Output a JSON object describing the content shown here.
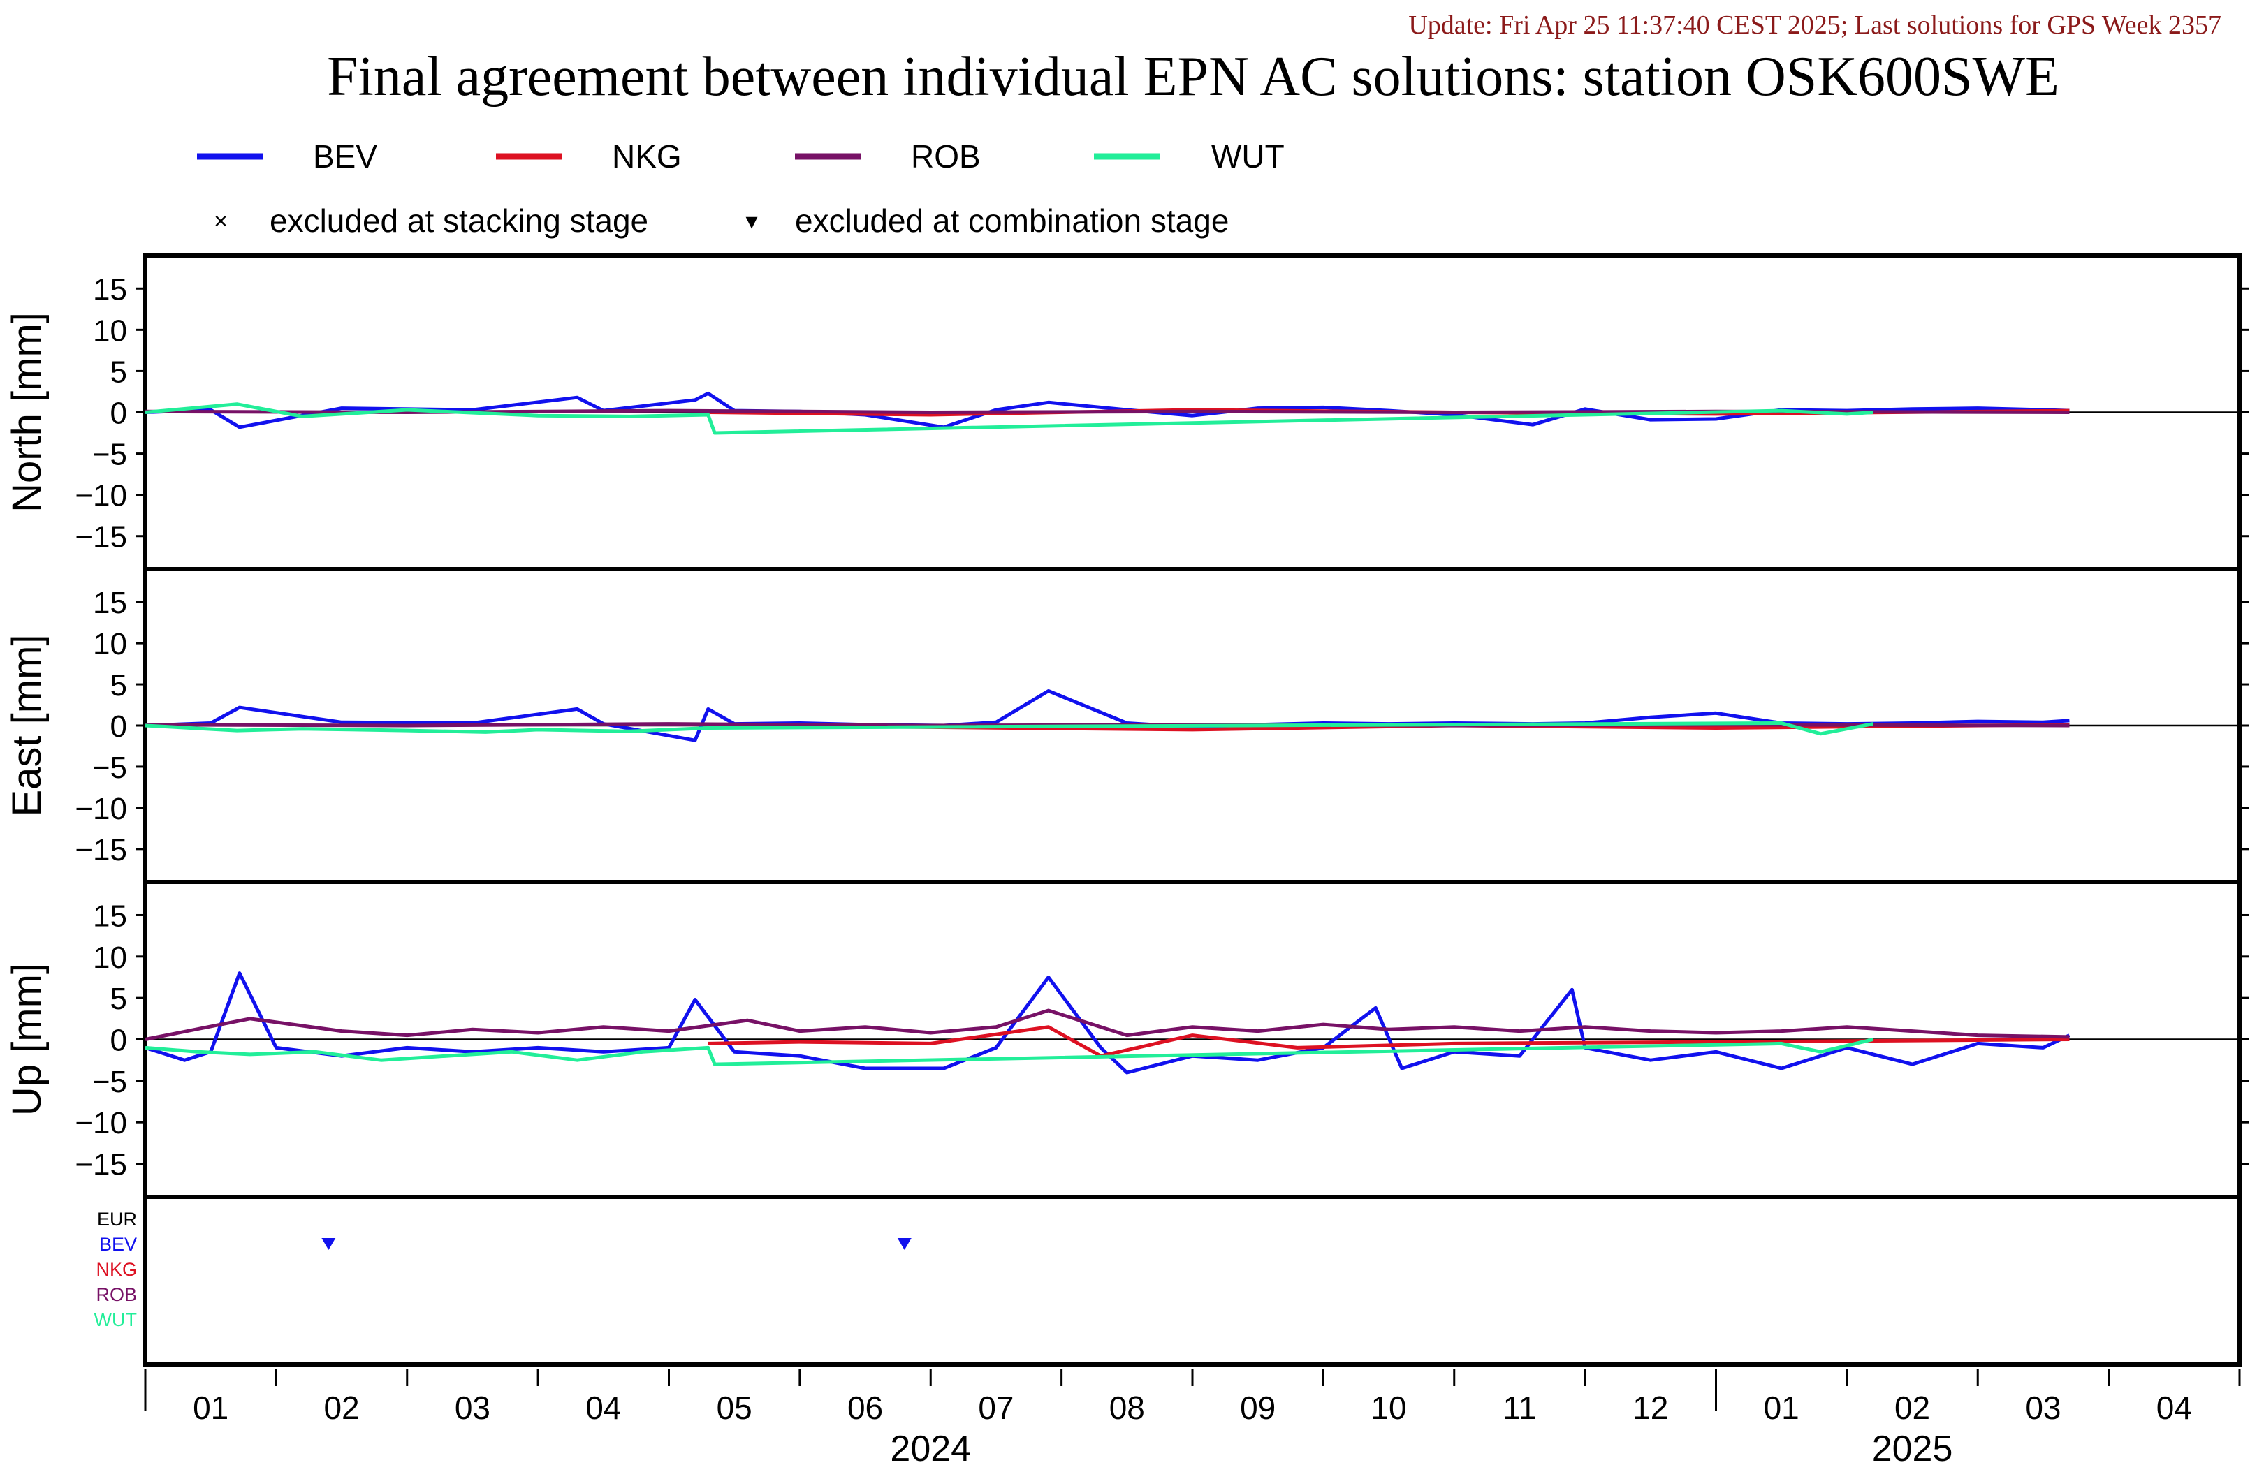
{
  "update_text": "Update: Fri Apr 25 11:37:40 CEST 2025; Last solutions for GPS Week 2357",
  "title": "Final agreement between individual EPN AC solutions: station OSK600SWE",
  "colors": {
    "BEV": "#1111ee",
    "NKG": "#dd1122",
    "ROB": "#771166",
    "WUT": "#22ee99",
    "EUR": "#000000",
    "update": "#8b1a1a"
  },
  "legend": {
    "series": [
      "BEV",
      "NKG",
      "ROB",
      "WUT"
    ],
    "excluded_stacking": "excluded at stacking stage",
    "excluded_combination": "excluded at combination stage",
    "marker_stacking": "×",
    "marker_combination": "▾"
  },
  "chart_data": [
    {
      "type": "line",
      "panel": "north",
      "ylabel": "North [mm]",
      "ylim": [
        -19,
        19
      ],
      "yticks": [
        15,
        10,
        5,
        0,
        -5,
        -10,
        -15
      ],
      "x_unit": "months since 2024-01-01",
      "xlim": [
        0,
        16
      ],
      "series": [
        {
          "name": "BEV",
          "x": [
            0,
            0.5,
            0.72,
            1.5,
            2.5,
            3.3,
            3.5,
            4.2,
            4.3,
            4.5,
            5.0,
            5.5,
            6.1,
            6.5,
            6.9,
            7.5,
            8.0,
            8.5,
            9.0,
            9.5,
            10.0,
            10.6,
            11.0,
            11.5,
            12.0,
            12.5,
            13.0,
            13.5,
            14.0,
            14.5,
            14.7
          ],
          "y": [
            0,
            0.3,
            -1.8,
            0.5,
            0.3,
            1.8,
            0.2,
            1.5,
            2.3,
            0.2,
            0.1,
            -0.3,
            -1.8,
            0.3,
            1.2,
            0.3,
            -0.4,
            0.5,
            0.6,
            0.2,
            -0.3,
            -1.5,
            0.4,
            -0.9,
            -0.8,
            0.3,
            0.2,
            0.4,
            0.5,
            0.3,
            0.2
          ]
        },
        {
          "name": "NKG",
          "x": [
            4.3,
            6.0,
            8.0,
            10.0,
            12.0,
            14.7
          ],
          "y": [
            0,
            -0.3,
            0.3,
            0,
            -0.2,
            0.2
          ]
        },
        {
          "name": "ROB",
          "x": [
            0,
            2.0,
            4.0,
            6.0,
            8.0,
            10.0,
            12.0,
            14.7
          ],
          "y": [
            0.1,
            0,
            0.2,
            0,
            0.1,
            0,
            0.1,
            0
          ]
        },
        {
          "name": "WUT",
          "x": [
            0,
            0.7,
            1.2,
            2.0,
            3.0,
            3.7,
            4.3,
            4.35,
            12.5,
            13.0,
            13.2
          ],
          "y": [
            0,
            1.0,
            -0.5,
            0.3,
            -0.4,
            -0.5,
            -0.3,
            -2.5,
            0.2,
            -0.2,
            0
          ]
        }
      ],
      "markers": []
    },
    {
      "type": "line",
      "panel": "east",
      "ylabel": "East [mm]",
      "ylim": [
        -19,
        19
      ],
      "yticks": [
        15,
        10,
        5,
        0,
        -5,
        -10,
        -15
      ],
      "x_unit": "months since 2024-01-01",
      "xlim": [
        0,
        16
      ],
      "series": [
        {
          "name": "BEV",
          "x": [
            0,
            0.5,
            0.72,
            1.5,
            2.5,
            3.3,
            3.5,
            4.2,
            4.3,
            4.5,
            5.0,
            5.5,
            6.1,
            6.5,
            6.9,
            7.5,
            8.0,
            8.5,
            9.0,
            9.5,
            10.0,
            10.6,
            11.0,
            11.5,
            12.0,
            12.5,
            13.0,
            13.5,
            14.0,
            14.5,
            14.7
          ],
          "y": [
            0,
            0.3,
            2.2,
            0.4,
            0.3,
            2.0,
            0.2,
            -1.8,
            2.0,
            0.2,
            0.3,
            0.1,
            0,
            0.4,
            4.2,
            0.3,
            -0.2,
            0.1,
            0.3,
            0.2,
            0.3,
            0.2,
            0.3,
            1.0,
            1.5,
            0.3,
            0.2,
            0.3,
            0.5,
            0.4,
            0.6
          ]
        },
        {
          "name": "NKG",
          "x": [
            4.3,
            6.0,
            8.0,
            10.0,
            12.0,
            14.7
          ],
          "y": [
            0,
            -0.2,
            -0.5,
            0,
            -0.3,
            0.1
          ]
        },
        {
          "name": "ROB",
          "x": [
            0,
            2.0,
            4.0,
            6.0,
            8.0,
            10.0,
            12.0,
            14.7
          ],
          "y": [
            0.1,
            0,
            0.2,
            0,
            0.1,
            0,
            0.1,
            0
          ]
        },
        {
          "name": "WUT",
          "x": [
            0,
            0.7,
            1.2,
            2.0,
            2.6,
            3.0,
            3.7,
            4.3,
            12.5,
            12.8,
            13.2
          ],
          "y": [
            0,
            -0.6,
            -0.4,
            -0.6,
            -0.8,
            -0.5,
            -0.7,
            -0.3,
            0.3,
            -1.0,
            0.2
          ]
        }
      ],
      "markers": []
    },
    {
      "type": "line",
      "panel": "up",
      "ylabel": "Up [mm]",
      "ylim": [
        -19,
        19
      ],
      "yticks": [
        15,
        10,
        5,
        0,
        -5,
        -10,
        -15
      ],
      "x_unit": "months since 2024-01-01",
      "xlim": [
        0,
        16
      ],
      "series": [
        {
          "name": "BEV",
          "x": [
            0,
            0.3,
            0.5,
            0.72,
            1.0,
            1.5,
            2.0,
            2.5,
            3.0,
            3.5,
            4.0,
            4.2,
            4.5,
            5.0,
            5.5,
            6.1,
            6.5,
            6.9,
            7.3,
            7.5,
            8.0,
            8.5,
            9.0,
            9.4,
            9.6,
            10.0,
            10.5,
            10.9,
            11.0,
            11.5,
            12.0,
            12.5,
            13.0,
            13.5,
            14.0,
            14.5,
            14.7
          ],
          "y": [
            -1,
            -2.5,
            -1.5,
            8.0,
            -1.0,
            -2.0,
            -1.0,
            -1.5,
            -1.0,
            -1.5,
            -1.0,
            4.8,
            -1.5,
            -2.0,
            -3.5,
            -3.5,
            -1.0,
            7.5,
            -1.0,
            -4.0,
            -2.0,
            -2.5,
            -1.0,
            3.8,
            -3.5,
            -1.5,
            -2.0,
            6.0,
            -1.0,
            -2.5,
            -1.5,
            -3.5,
            -1.0,
            -3.0,
            -0.5,
            -1.0,
            0.5
          ]
        },
        {
          "name": "NKG",
          "x": [
            4.3,
            5.0,
            6.0,
            6.9,
            7.3,
            8.0,
            8.8,
            10.0,
            12.0,
            14.7
          ],
          "y": [
            -0.5,
            -0.3,
            -0.5,
            1.5,
            -2.0,
            0.5,
            -1.0,
            -0.5,
            -0.3,
            0
          ]
        },
        {
          "name": "ROB",
          "x": [
            0,
            0.8,
            1.5,
            2.0,
            2.5,
            3.0,
            3.5,
            4.0,
            4.6,
            5.0,
            5.5,
            6.0,
            6.5,
            6.9,
            7.5,
            8.0,
            8.5,
            9.0,
            9.5,
            10.0,
            10.5,
            11.0,
            11.5,
            12.0,
            12.5,
            13.0,
            13.5,
            14.0,
            14.7
          ],
          "y": [
            0,
            2.5,
            1.0,
            0.5,
            1.2,
            0.8,
            1.5,
            1.0,
            2.3,
            1.0,
            1.5,
            0.8,
            1.5,
            3.5,
            0.5,
            1.5,
            1.0,
            1.8,
            1.2,
            1.5,
            1.0,
            1.5,
            1.0,
            0.8,
            1.0,
            1.5,
            1.0,
            0.5,
            0.3
          ]
        },
        {
          "name": "WUT",
          "x": [
            0,
            0.4,
            0.8,
            1.3,
            1.8,
            2.3,
            2.8,
            3.3,
            3.8,
            4.3,
            4.35,
            12.5,
            12.8,
            13.2
          ],
          "y": [
            -1.0,
            -1.5,
            -1.8,
            -1.5,
            -2.5,
            -2.0,
            -1.5,
            -2.5,
            -1.5,
            -1.0,
            -3.0,
            -0.5,
            -1.5,
            0
          ]
        }
      ],
      "markers": []
    },
    {
      "type": "scatter",
      "panel": "exclusions",
      "row_labels": [
        "EUR",
        "BEV",
        "NKG",
        "ROB",
        "WUT"
      ],
      "x_unit": "months since 2024-01-01",
      "xlim": [
        0,
        16
      ],
      "points": [
        {
          "row": "BEV",
          "x": 1.4,
          "marker": "combination"
        },
        {
          "row": "BEV",
          "x": 5.8,
          "marker": "combination"
        }
      ]
    }
  ],
  "x_axis": {
    "month_labels": [
      "01",
      "02",
      "03",
      "04",
      "05",
      "06",
      "07",
      "08",
      "09",
      "10",
      "11",
      "12",
      "01",
      "02",
      "03",
      "04"
    ],
    "year_labels": [
      {
        "text": "2024",
        "x": 6
      },
      {
        "text": "2025",
        "x": 13.5
      }
    ]
  }
}
